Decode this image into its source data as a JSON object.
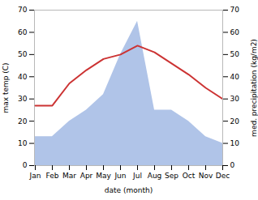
{
  "chart_data": {
    "type": "line",
    "xlabel": "date (month)",
    "ylabel": "max temp (C)",
    "y2label": "med. precipitation (kg/m2)",
    "categories": [
      "Jan",
      "Feb",
      "Mar",
      "Apr",
      "May",
      "Jun",
      "Jul",
      "Aug",
      "Sep",
      "Oct",
      "Nov",
      "Dec"
    ],
    "series": [
      {
        "type": "line",
        "color": "#cc3333",
        "values": [
          27,
          27,
          37,
          43,
          48,
          50,
          54,
          51,
          46,
          41,
          35,
          30
        ]
      },
      {
        "type": "area",
        "color": "#b0c4e8",
        "axis": "y2",
        "values": [
          13,
          13,
          20,
          25,
          32,
          50,
          65,
          25,
          25,
          20,
          13,
          10
        ]
      }
    ],
    "ylim": [
      0,
      70
    ],
    "yticks": [
      0,
      10,
      20,
      30,
      40,
      50,
      60,
      70
    ],
    "y2lim": [
      0,
      70
    ],
    "y2ticks": [
      0,
      10,
      20,
      30,
      40,
      50,
      60,
      70
    ]
  }
}
